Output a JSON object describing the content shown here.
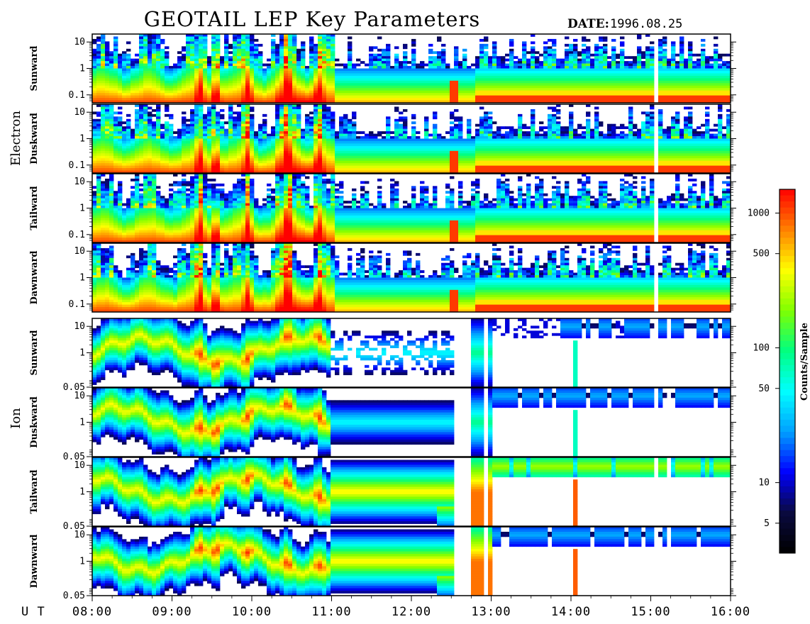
{
  "title": "GEOTAIL LEP Key Parameters",
  "date_label": "DATE:",
  "date_value": "1996.08.25",
  "x_axis_label": "U T",
  "x_tick_labels": [
    "08:00",
    "09:00",
    "10:00",
    "11:00",
    "12:00",
    "13:00",
    "14:00",
    "15:00",
    "16:00"
  ],
  "groups": [
    {
      "name": "Electron",
      "panels": [
        "Sunward",
        "Duskward",
        "Tailward",
        "Dawnward"
      ],
      "y_tick_labels": [
        "10",
        "1",
        "0.1"
      ]
    },
    {
      "name": "Ion",
      "panels": [
        "Sunward",
        "Duskward",
        "Tailward",
        "Dawnward"
      ],
      "y_tick_labels": [
        "10",
        "1",
        "0.05"
      ]
    }
  ],
  "colorbar": {
    "label": "Counts/Sample",
    "tick_labels": [
      "1000",
      "500",
      "100",
      "50",
      "10",
      "5"
    ],
    "tick_values": [
      1000,
      500,
      100,
      50,
      10,
      5
    ],
    "range": [
      3,
      1500
    ],
    "scale": "log",
    "colormap": [
      "#000000",
      "#0a0a40",
      "#0000ff",
      "#00a0ff",
      "#00ffff",
      "#00ff80",
      "#80ff00",
      "#ffff00",
      "#ff8000",
      "#ff0000"
    ]
  },
  "chart_data": {
    "type": "heatmap",
    "title": "GEOTAIL LEP Key Parameters",
    "xlabel": "U T",
    "x_range": [
      "08:00",
      "16:00"
    ],
    "x_ticks": [
      "08:00",
      "09:00",
      "10:00",
      "11:00",
      "12:00",
      "13:00",
      "14:00",
      "15:00",
      "16:00"
    ],
    "y_scale": "log",
    "electron_ylim": [
      0.05,
      20
    ],
    "ion_ylim": [
      0.05,
      20
    ],
    "z_label": "Counts/Sample",
    "z_scale": "log",
    "z_range": [
      3,
      1500
    ],
    "panels": [
      {
        "group": "Electron",
        "direction": "Sunward"
      },
      {
        "group": "Electron",
        "direction": "Duskward"
      },
      {
        "group": "Electron",
        "direction": "Tailward"
      },
      {
        "group": "Electron",
        "direction": "Dawnward"
      },
      {
        "group": "Ion",
        "direction": "Sunward"
      },
      {
        "group": "Ion",
        "direction": "Duskward"
      },
      {
        "group": "Ion",
        "direction": "Tailward"
      },
      {
        "group": "Ion",
        "direction": "Dawnward"
      }
    ]
  }
}
